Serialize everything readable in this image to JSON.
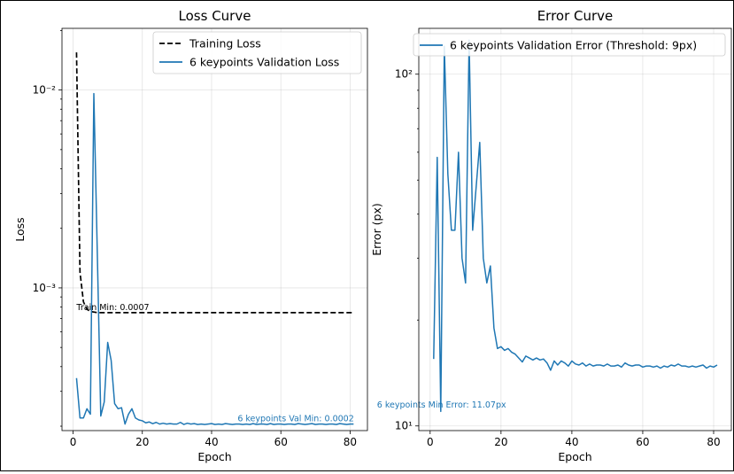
{
  "colors": {
    "blue": "#1f77b4",
    "black": "#000000"
  },
  "chart_data": [
    {
      "type": "line",
      "title": "Loss Curve",
      "xlabel": "Epoch",
      "ylabel": "Loss",
      "yscale": "log",
      "xlim": [
        -3.2,
        85
      ],
      "ylim": [
        0.00019,
        0.0205
      ],
      "xticks": [
        0,
        20,
        40,
        60,
        80
      ],
      "xtick_labels": [
        "0",
        "20",
        "40",
        "60",
        "80"
      ],
      "yticks": [
        0.001,
        0.01
      ],
      "ytick_labels": [
        "10⁻³",
        "10⁻²"
      ],
      "grid": true,
      "legend_position": "top-right",
      "series": [
        {
          "name": "Training Loss",
          "style": "dashed",
          "color": "#000000",
          "x": [
            1,
            2,
            3,
            4,
            5,
            6,
            7,
            8,
            9,
            10,
            12,
            15,
            20,
            30,
            40,
            50,
            60,
            70,
            81
          ],
          "y": [
            0.0155,
            0.0012,
            0.00085,
            0.00078,
            0.00076,
            0.000755,
            0.00075,
            0.00075,
            0.00075,
            0.00075,
            0.00075,
            0.00075,
            0.00075,
            0.00075,
            0.00075,
            0.00075,
            0.00075,
            0.00075,
            0.00075
          ]
        },
        {
          "name": "6 keypoints Validation Loss",
          "style": "solid",
          "color": "#1f77b4",
          "x": [
            1,
            2,
            3,
            4,
            5,
            6,
            7,
            8,
            9,
            10,
            11,
            12,
            13,
            14,
            15,
            16,
            17,
            18,
            19,
            20,
            21,
            22,
            23,
            24,
            25,
            26,
            27,
            28,
            29,
            30,
            31,
            32,
            33,
            34,
            35,
            36,
            37,
            38,
            39,
            40,
            41,
            42,
            43,
            44,
            45,
            46,
            47,
            48,
            49,
            50,
            51,
            52,
            53,
            54,
            55,
            56,
            57,
            58,
            59,
            60,
            61,
            62,
            63,
            64,
            65,
            66,
            67,
            68,
            69,
            70,
            71,
            72,
            73,
            74,
            75,
            76,
            77,
            78,
            79,
            80,
            81
          ],
          "y": [
            0.00035,
            0.00022,
            0.00022,
            0.000245,
            0.00023,
            0.0096,
            0.0015,
            0.000225,
            0.000265,
            0.00053,
            0.00043,
            0.00026,
            0.000245,
            0.000248,
            0.000205,
            0.00023,
            0.000245,
            0.00022,
            0.000215,
            0.000213,
            0.000208,
            0.00021,
            0.000206,
            0.000209,
            0.000205,
            0.000207,
            0.000205,
            0.000206,
            0.000205,
            0.000205,
            0.000209,
            0.000204,
            0.000207,
            0.000205,
            0.000206,
            0.000204,
            0.000205,
            0.000204,
            0.000205,
            0.000206,
            0.000204,
            0.000205,
            0.000204,
            0.000206,
            0.000205,
            0.000204,
            0.000205,
            0.000205,
            0.000204,
            0.000205,
            0.000204,
            0.000206,
            0.000204,
            0.000205,
            0.000205,
            0.000204,
            0.000206,
            0.000204,
            0.000205,
            0.000205,
            0.000204,
            0.000205,
            0.000205,
            0.000204,
            0.000206,
            0.000205,
            0.000204,
            0.000205,
            0.000206,
            0.000204,
            0.000205,
            0.000205,
            0.000204,
            0.000205,
            0.000205,
            0.000204,
            0.000206,
            0.000205,
            0.000204,
            0.000205,
            0.000205
          ]
        }
      ],
      "annotations": [
        {
          "text": "Train Min: 0.0007",
          "x": 1,
          "y": 0.00075,
          "color": "#000000"
        },
        {
          "text": "6 keypoints Val Min: 0.0002",
          "x": 47.5,
          "y": 0.000205,
          "color": "#1f77b4"
        }
      ]
    },
    {
      "type": "line",
      "title": "Error Curve",
      "xlabel": "Epoch",
      "ylabel": "Error (px)",
      "yscale": "log",
      "xlim": [
        -3.2,
        85
      ],
      "ylim": [
        9.7,
        135
      ],
      "xticks": [
        0,
        20,
        40,
        60,
        80
      ],
      "xtick_labels": [
        "0",
        "20",
        "40",
        "60",
        "80"
      ],
      "yticks": [
        10,
        100
      ],
      "ytick_labels": [
        "10¹",
        "10²"
      ],
      "grid": true,
      "legend_position": "top-center",
      "series": [
        {
          "name": "6 keypoints Validation Error (Threshold: 9px)",
          "style": "solid",
          "color": "#1f77b4",
          "x": [
            1,
            2,
            3,
            4,
            5,
            6,
            7,
            8,
            9,
            10,
            11,
            12,
            13,
            14,
            15,
            16,
            17,
            18,
            19,
            20,
            21,
            22,
            23,
            24,
            25,
            26,
            27,
            28,
            29,
            30,
            31,
            32,
            33,
            34,
            35,
            36,
            37,
            38,
            39,
            40,
            41,
            42,
            43,
            44,
            45,
            46,
            47,
            48,
            49,
            50,
            51,
            52,
            53,
            54,
            55,
            56,
            57,
            58,
            59,
            60,
            61,
            62,
            63,
            64,
            65,
            66,
            67,
            68,
            69,
            70,
            71,
            72,
            73,
            74,
            75,
            76,
            77,
            78,
            79,
            80,
            81
          ],
          "y": [
            15.5,
            58,
            11,
            120,
            52,
            36,
            36,
            60,
            30,
            25.5,
            125,
            36,
            48,
            64,
            30,
            25.5,
            28.5,
            19,
            16.6,
            16.8,
            16.4,
            16.6,
            16.2,
            16,
            15.6,
            15.2,
            15.8,
            15.6,
            15.4,
            15.6,
            15.4,
            15.5,
            15.1,
            14.4,
            15.3,
            14.9,
            15.3,
            15.1,
            14.8,
            15.3,
            15,
            14.9,
            15.1,
            14.8,
            15.0,
            14.8,
            14.9,
            14.9,
            14.8,
            15.0,
            14.8,
            14.8,
            14.9,
            14.7,
            15.1,
            14.9,
            14.8,
            14.9,
            14.9,
            14.7,
            14.8,
            14.8,
            14.7,
            14.8,
            14.6,
            14.8,
            14.7,
            14.9,
            14.8,
            15,
            14.8,
            14.8,
            14.7,
            14.8,
            14.7,
            14.8,
            14.9,
            14.6,
            14.8,
            14.7,
            14.9
          ]
        }
      ],
      "annotations": [
        {
          "text": "6 keypoints Min Error: 11.07px",
          "x": -15,
          "y": 11.07,
          "color": "#1f77b4"
        }
      ]
    }
  ]
}
